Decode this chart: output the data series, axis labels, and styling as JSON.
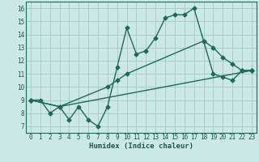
{
  "title": "",
  "xlabel": "Humidex (Indice chaleur)",
  "ylabel": "",
  "bg_color": "#cce8e4",
  "grid_color": "#aacccc",
  "line_color": "#1a6b5a",
  "xlim": [
    -0.5,
    23.5
  ],
  "ylim": [
    6.5,
    16.5
  ],
  "xticks": [
    0,
    1,
    2,
    3,
    4,
    5,
    6,
    7,
    8,
    9,
    10,
    11,
    12,
    13,
    14,
    15,
    16,
    17,
    18,
    19,
    20,
    21,
    22,
    23
  ],
  "yticks": [
    7,
    8,
    9,
    10,
    11,
    12,
    13,
    14,
    15,
    16
  ],
  "line1_x": [
    0,
    1,
    2,
    3,
    4,
    5,
    6,
    7,
    8,
    9,
    10,
    11,
    12,
    13,
    14,
    15,
    16,
    17,
    18,
    19,
    20,
    21,
    22,
    23
  ],
  "line1_y": [
    9,
    9,
    8,
    8.5,
    7.5,
    8.5,
    7.5,
    7.0,
    8.5,
    11.5,
    14.5,
    12.5,
    12.75,
    13.75,
    15.25,
    15.5,
    15.5,
    16.0,
    13.5,
    13.0,
    12.25,
    11.75,
    11.25,
    11.25
  ],
  "line2_x": [
    0,
    3,
    8,
    9,
    10,
    18,
    19,
    20,
    21,
    22,
    23
  ],
  "line2_y": [
    9,
    8.5,
    10.0,
    10.5,
    11.0,
    13.5,
    11.0,
    10.75,
    10.5,
    11.25,
    11.25
  ],
  "line3_x": [
    0,
    3,
    23
  ],
  "line3_y": [
    9,
    8.5,
    11.25
  ]
}
